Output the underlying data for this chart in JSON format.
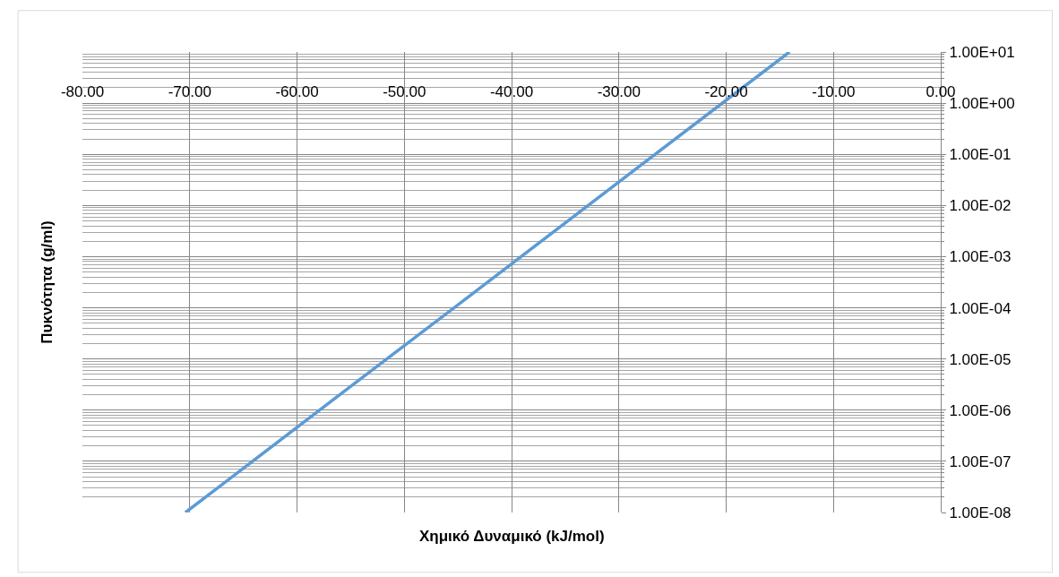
{
  "chart_data": {
    "type": "line",
    "xlabel": "Χημικό Δυναμικό (kJ/mol)",
    "ylabel": "Πυκνότητα (g/ml)",
    "log": "y",
    "grid": true,
    "marker": "none",
    "line_style": "solid",
    "x": [
      -70.4,
      -56.3,
      -42.2,
      -28.2,
      -14.1
    ],
    "series": [
      {
        "color": "#5b9bd5",
        "values": [
          1e-08,
          1.8e-06,
          0.00032,
          0.056,
          10
        ]
      }
    ],
    "xlim": [
      -80,
      0
    ],
    "xticks": [
      {
        "value": -80,
        "label": "-80.00"
      },
      {
        "value": -70,
        "label": "-70.00"
      },
      {
        "value": -60,
        "label": "-60.00"
      },
      {
        "value": -50,
        "label": "-50.00"
      },
      {
        "value": -40,
        "label": "-40.00"
      },
      {
        "value": -30,
        "label": "-30.00"
      },
      {
        "value": -20,
        "label": "-20.00"
      },
      {
        "value": -10,
        "label": "-10.00"
      },
      {
        "value": 0,
        "label": "0.00"
      }
    ],
    "ylim": [
      1e-08,
      10
    ],
    "yticks": [
      {
        "value": 10,
        "label": "1.00E+01"
      },
      {
        "value": 1,
        "label": "1.00E+00"
      },
      {
        "value": 0.1,
        "label": "1.00E-01"
      },
      {
        "value": 0.01,
        "label": "1.00E-02"
      },
      {
        "value": 0.001,
        "label": "1.00E-03"
      },
      {
        "value": 0.0001,
        "label": "1.00E-04"
      },
      {
        "value": 1e-05,
        "label": "1.00E-05"
      },
      {
        "value": 1e-06,
        "label": "1.00E-06"
      },
      {
        "value": 1e-07,
        "label": "1.00E-07"
      },
      {
        "value": 1e-08,
        "label": "1.00E-08"
      }
    ]
  }
}
